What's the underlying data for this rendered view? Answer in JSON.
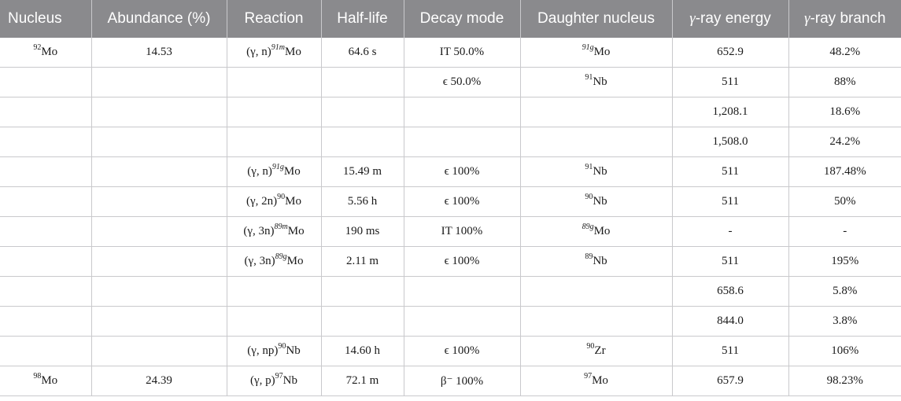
{
  "headers": [
    {
      "pre": "",
      "text": "Nucleus"
    },
    {
      "pre": "",
      "text": "Abundance (%)"
    },
    {
      "pre": "",
      "text": "Reaction"
    },
    {
      "pre": "",
      "text": "Half-life"
    },
    {
      "pre": "",
      "text": "Decay mode"
    },
    {
      "pre": "",
      "text": "Daughter nucleus"
    },
    {
      "pre": "γ",
      "text": "-ray energy"
    },
    {
      "pre": "γ",
      "text": "-ray branch"
    }
  ],
  "rows": [
    {
      "nucleus": {
        "sup": "92",
        "main": "Mo"
      },
      "abundance": "14.53",
      "reaction": {
        "pre": "(γ, n)",
        "sup": "91m",
        "supItalic": true,
        "main": "Mo"
      },
      "halflife": "64.6 s",
      "decay": "IT 50.0%",
      "daughter": {
        "sup": "91g",
        "supItalic": true,
        "main": "Mo"
      },
      "energy": "652.9",
      "branch": "48.2%"
    },
    {
      "nucleus": null,
      "abundance": "",
      "reaction": null,
      "halflife": "",
      "decay": "ϵ 50.0%",
      "daughter": {
        "sup": "91",
        "supItalic": false,
        "main": "Nb"
      },
      "energy": "511",
      "branch": "88%"
    },
    {
      "nucleus": null,
      "abundance": "",
      "reaction": null,
      "halflife": "",
      "decay": "",
      "daughter": null,
      "energy": "1,208.1",
      "branch": "18.6%"
    },
    {
      "nucleus": null,
      "abundance": "",
      "reaction": null,
      "halflife": "",
      "decay": "",
      "daughter": null,
      "energy": "1,508.0",
      "branch": "24.2%"
    },
    {
      "nucleus": null,
      "abundance": "",
      "reaction": {
        "pre": "(γ, n)",
        "sup": "91g",
        "supItalic": true,
        "main": "Mo"
      },
      "halflife": "15.49 m",
      "decay": "ϵ 100%",
      "daughter": {
        "sup": "91",
        "supItalic": false,
        "main": "Nb"
      },
      "energy": "511",
      "branch": "187.48%"
    },
    {
      "nucleus": null,
      "abundance": "",
      "reaction": {
        "pre": "(γ, 2n)",
        "sup": "90",
        "supItalic": false,
        "main": "Mo"
      },
      "halflife": "5.56 h",
      "decay": "ϵ 100%",
      "daughter": {
        "sup": "90",
        "supItalic": false,
        "main": "Nb"
      },
      "energy": "511",
      "branch": "50%"
    },
    {
      "nucleus": null,
      "abundance": "",
      "reaction": {
        "pre": "(γ, 3n)",
        "sup": "89m",
        "supItalic": true,
        "main": "Mo"
      },
      "halflife": "190 ms",
      "decay": "IT 100%",
      "daughter": {
        "sup": "89g",
        "supItalic": true,
        "main": "Mo"
      },
      "energy": "-",
      "branch": "-"
    },
    {
      "nucleus": null,
      "abundance": "",
      "reaction": {
        "pre": "(γ, 3n)",
        "sup": "89g",
        "supItalic": true,
        "main": "Mo"
      },
      "halflife": "2.11 m",
      "decay": "ϵ 100%",
      "daughter": {
        "sup": "89",
        "supItalic": false,
        "main": "Nb"
      },
      "energy": "511",
      "branch": "195%"
    },
    {
      "nucleus": null,
      "abundance": "",
      "reaction": null,
      "halflife": "",
      "decay": "",
      "daughter": null,
      "energy": "658.6",
      "branch": "5.8%"
    },
    {
      "nucleus": null,
      "abundance": "",
      "reaction": null,
      "halflife": "",
      "decay": "",
      "daughter": null,
      "energy": "844.0",
      "branch": "3.8%"
    },
    {
      "nucleus": null,
      "abundance": "",
      "reaction": {
        "pre": "(γ, np)",
        "sup": "90",
        "supItalic": false,
        "main": "Nb"
      },
      "halflife": "14.60 h",
      "decay": "ϵ 100%",
      "daughter": {
        "sup": "90",
        "supItalic": false,
        "main": "Zr"
      },
      "energy": "511",
      "branch": "106%"
    },
    {
      "nucleus": {
        "sup": "98",
        "main": "Mo"
      },
      "abundance": "24.39",
      "reaction": {
        "pre": "(γ, p)",
        "sup": "97",
        "supItalic": false,
        "main": "Nb"
      },
      "halflife": "72.1 m",
      "decay": "β⁻ 100%",
      "daughter": {
        "sup": "97",
        "supItalic": false,
        "main": "Mo"
      },
      "energy": "657.9",
      "branch": "98.23%"
    }
  ]
}
